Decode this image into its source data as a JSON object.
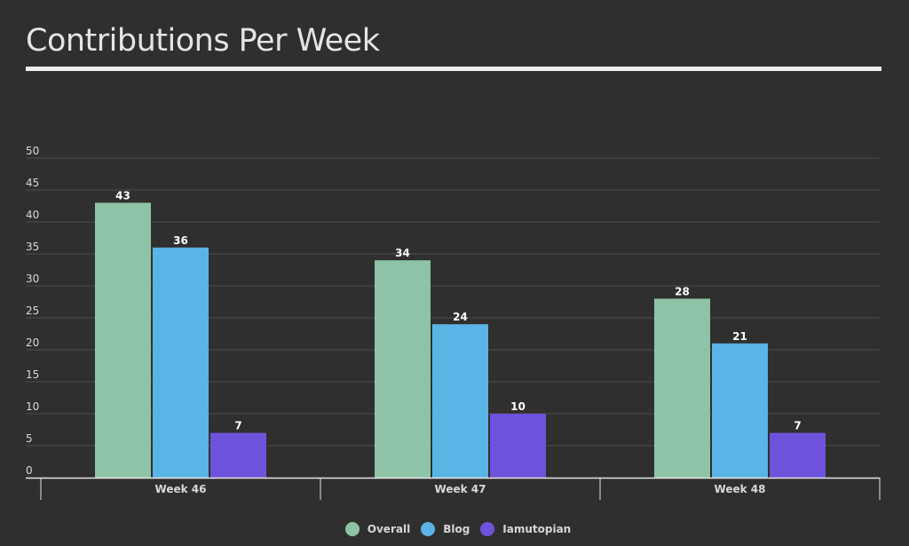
{
  "page": {
    "title": "Contributions Per Week"
  },
  "chart_data": {
    "type": "bar",
    "title": "Contributions Per Week",
    "xlabel": "",
    "ylabel": "",
    "categories": [
      "Week 46",
      "Week 47",
      "Week 48"
    ],
    "series": [
      {
        "name": "Overall",
        "color": "#8ec3a7",
        "values": [
          43,
          34,
          28
        ]
      },
      {
        "name": "Blog",
        "color": "#5ab4e5",
        "values": [
          36,
          24,
          21
        ]
      },
      {
        "name": "Iamutopian",
        "color": "#6f52dc",
        "values": [
          7,
          10,
          7
        ]
      }
    ],
    "ylim": [
      0,
      50
    ],
    "yticks": [
      "0",
      "5",
      "10",
      "15",
      "20",
      "25",
      "30",
      "35",
      "40",
      "45",
      "50"
    ],
    "grid": true,
    "data_labels": true,
    "legend_position": "bottom-center"
  }
}
